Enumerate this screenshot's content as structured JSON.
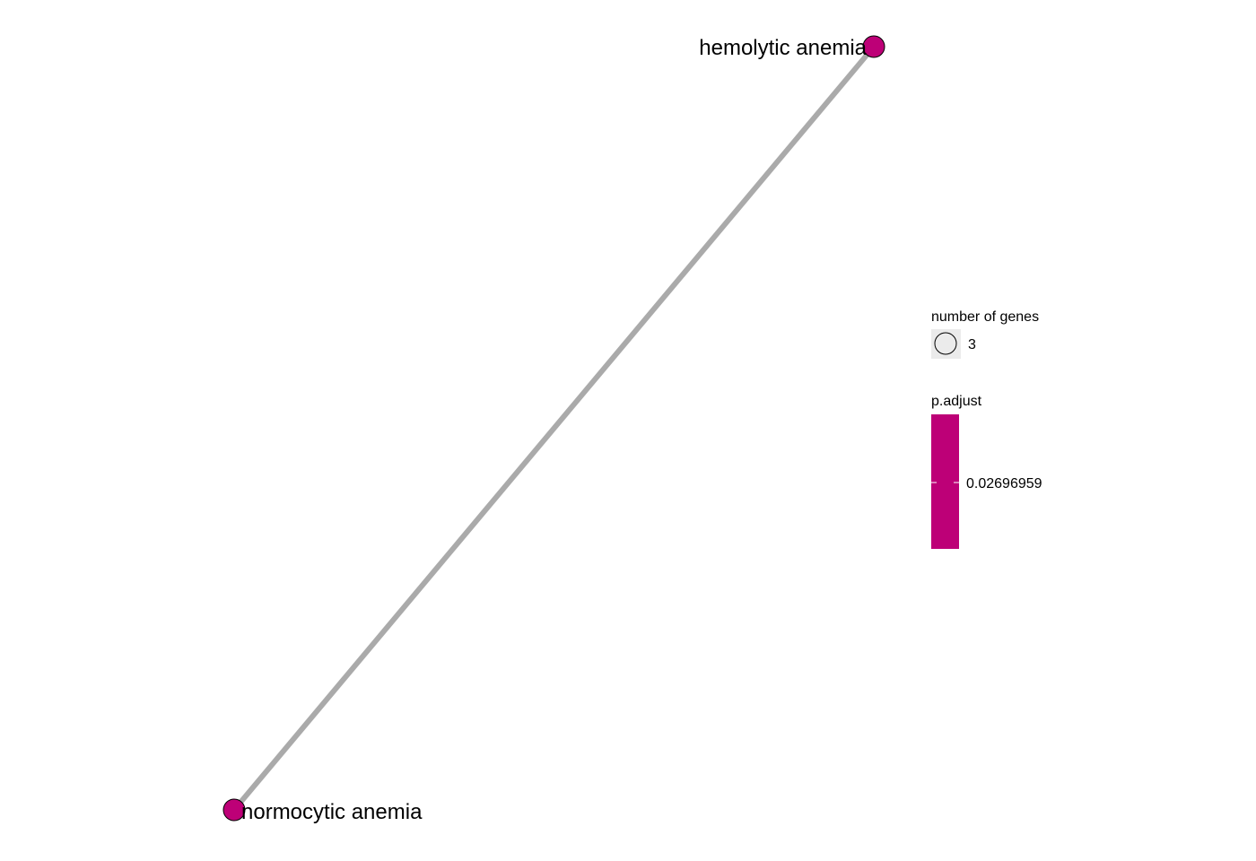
{
  "network": {
    "nodes": [
      {
        "id": "hemolytic",
        "label": "hemolytic anemia",
        "gene_count": 3,
        "p_adjust": 0.02696959
      },
      {
        "id": "normocytic",
        "label": "normocytic anemia",
        "gene_count": 3,
        "p_adjust": 0.02696959
      }
    ],
    "edges": [
      {
        "source": "normocytic",
        "target": "hemolytic"
      }
    ],
    "node_color": "#BD0077",
    "edge_color": "#AAAAAA"
  },
  "legend": {
    "size_title": "number of genes",
    "size_key_value": "3",
    "size_key_fill": "#EBEBEB",
    "color_title": "p.adjust",
    "color_bar_value": "0.02696959",
    "color_bar_fill": "#BD0077"
  }
}
